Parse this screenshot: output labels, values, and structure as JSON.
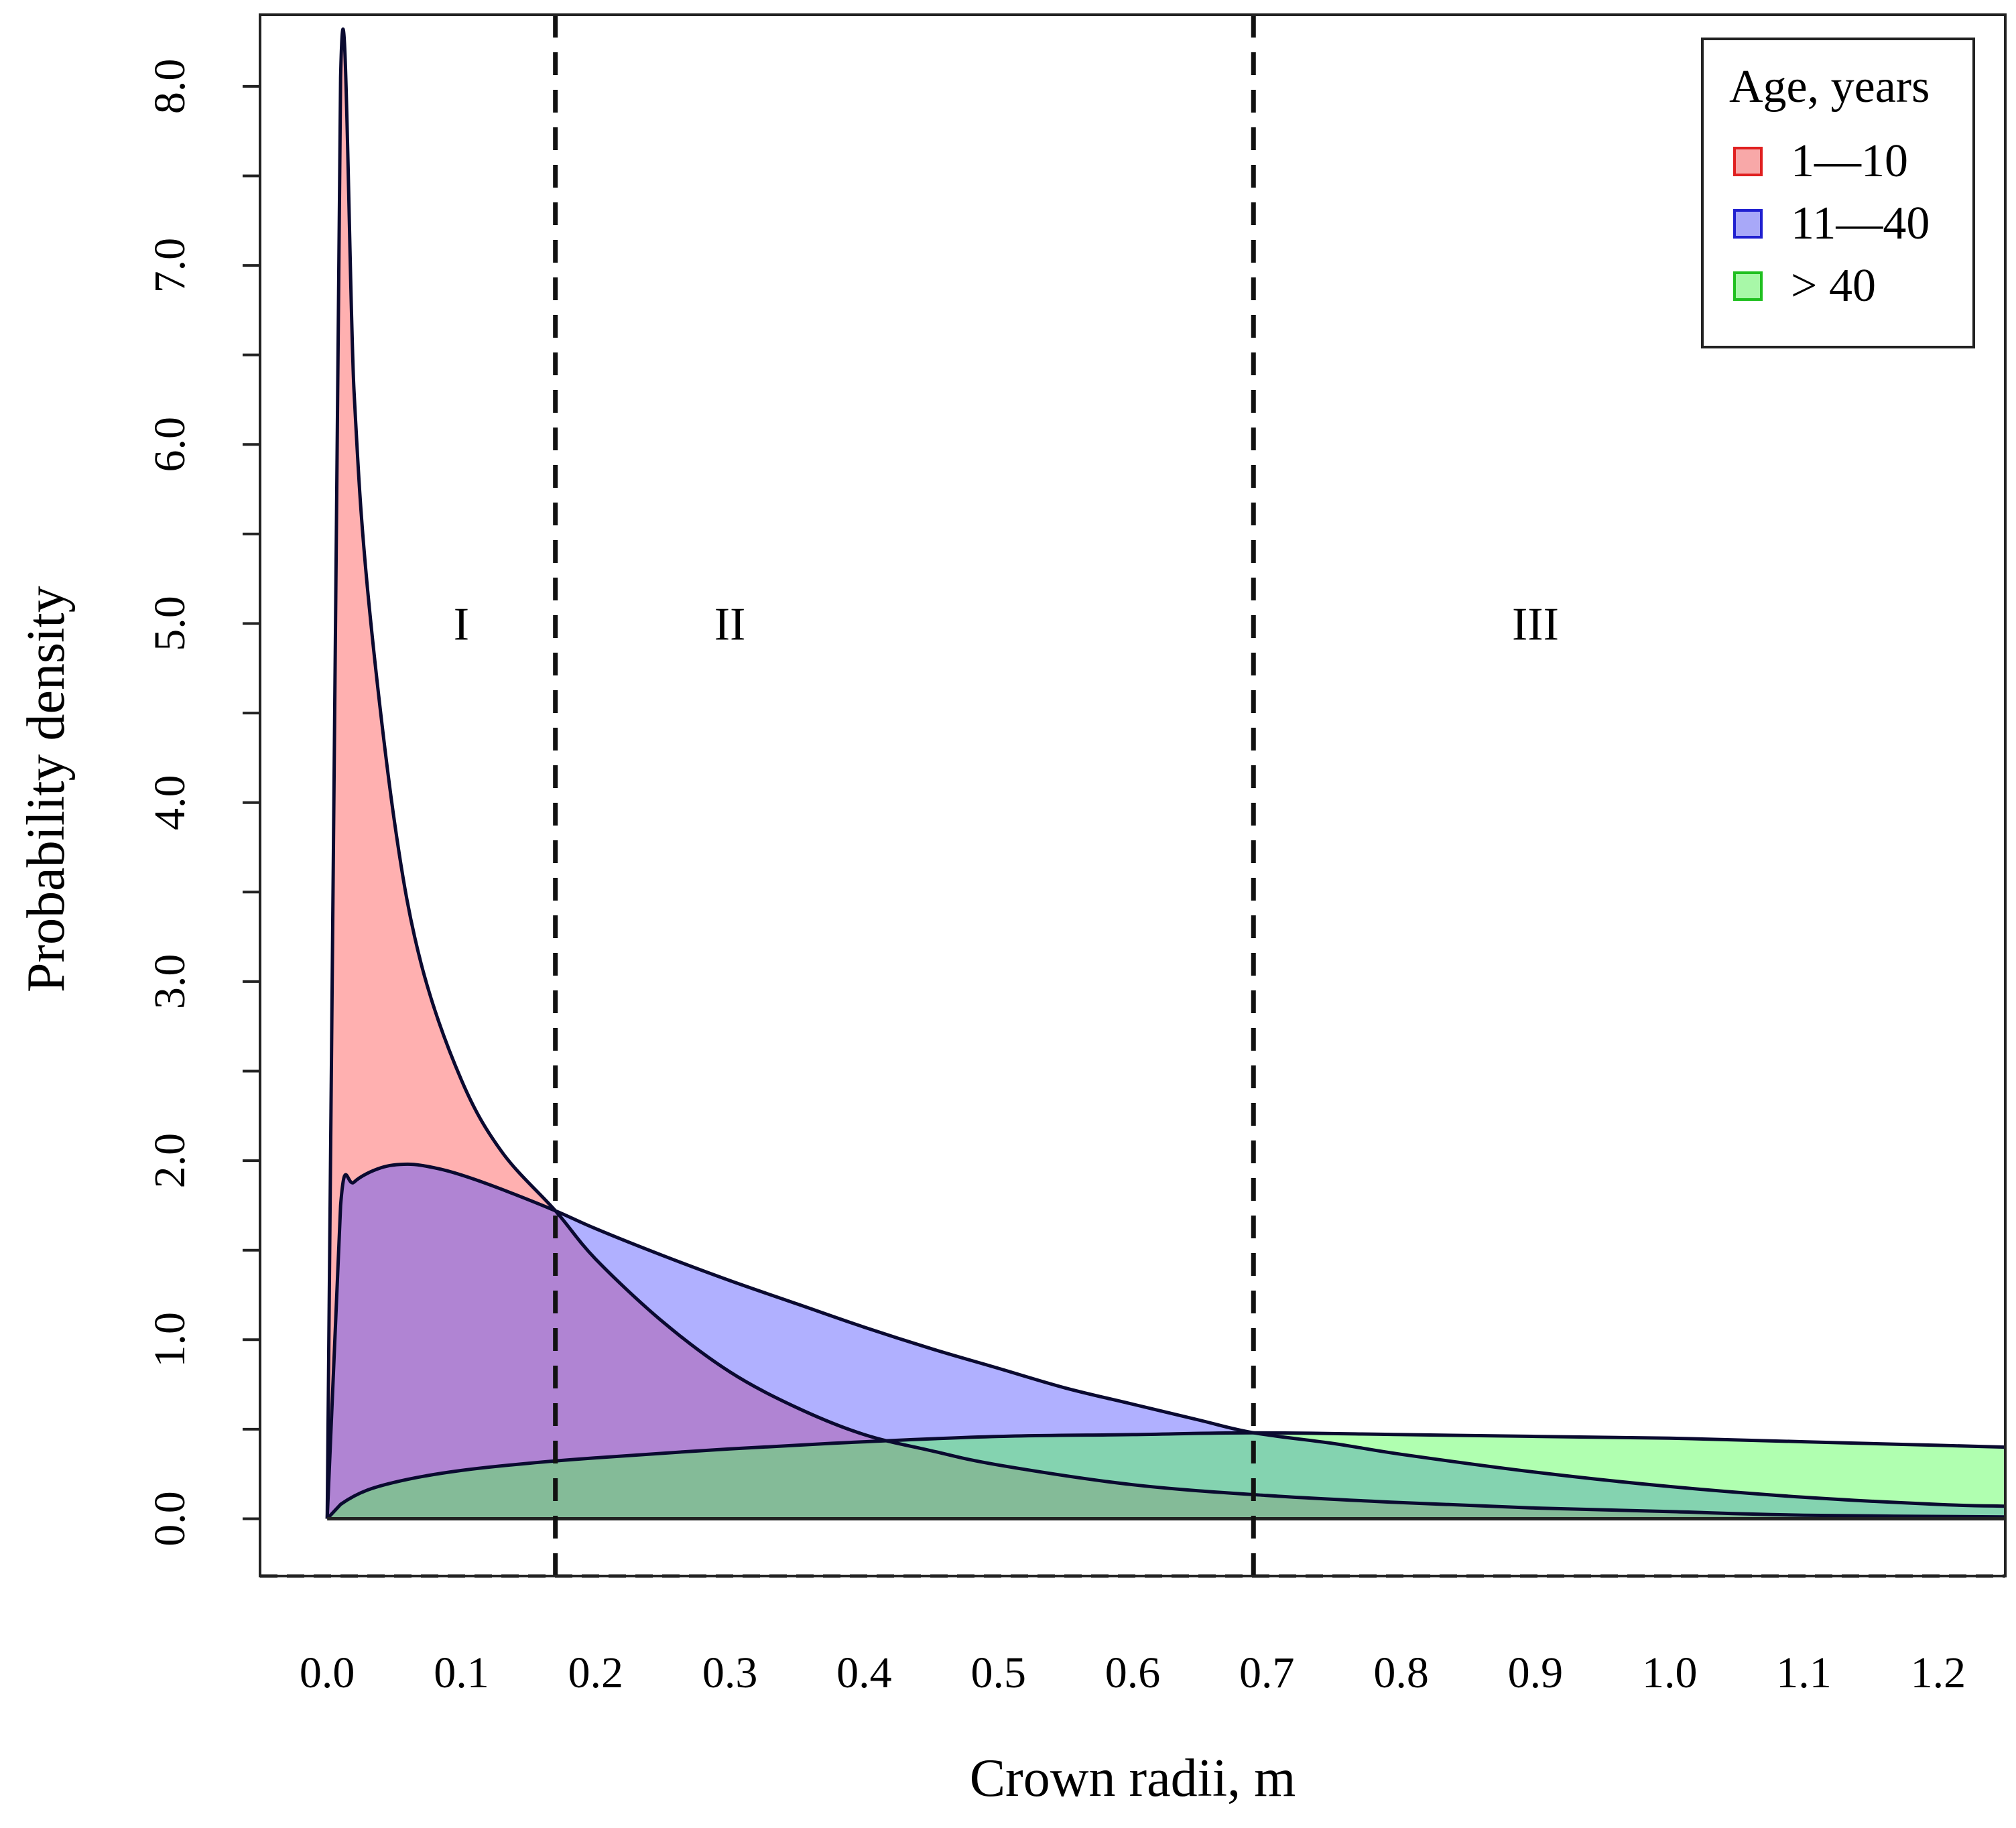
{
  "chart_data": {
    "type": "area",
    "title": "",
    "xlabel": "Crown radii, m",
    "ylabel": "Probability density",
    "xlim": [
      -0.05,
      1.25
    ],
    "ylim": [
      -0.32,
      8.4
    ],
    "x_ticks": [
      0.0,
      0.1,
      0.2,
      0.3,
      0.4,
      0.5,
      0.6,
      0.7,
      0.8,
      0.9,
      1.0,
      1.1,
      1.2
    ],
    "x_tick_labels": [
      "0.0",
      "0.1",
      "0.2",
      "0.3",
      "0.4",
      "0.5",
      "0.6",
      "0.7",
      "0.8",
      "0.9",
      "1.0",
      "1.1",
      "1.2"
    ],
    "y_ticks": [
      0.0,
      1.0,
      2.0,
      3.0,
      4.0,
      5.0,
      6.0,
      7.0,
      8.0
    ],
    "y_tick_labels": [
      "0.0",
      "1.0",
      "2.0",
      "3.0",
      "4.0",
      "5.0",
      "6.0",
      "7.0",
      "8.0"
    ],
    "y_minor_ticks": [
      0.5,
      1.5,
      2.5,
      3.5,
      4.5,
      5.5,
      6.5,
      7.5
    ],
    "grid": false,
    "legend": {
      "title": "Age, years",
      "position": "top-right",
      "entries": [
        {
          "label": "1—10",
          "fill": "#f8a8a8",
          "stroke": "#e02020"
        },
        {
          "label": "11—40",
          "fill": "#a8a8f8",
          "stroke": "#2020d0"
        },
        {
          "label": "> 40",
          "fill": "#a8f8a8",
          "stroke": "#20c020"
        }
      ]
    },
    "thresholds": [
      0.17,
      0.69
    ],
    "regions": [
      {
        "label": "I",
        "x": 0.1,
        "y": 5.0
      },
      {
        "label": "II",
        "x": 0.3,
        "y": 5.0
      },
      {
        "label": "III",
        "x": 0.9,
        "y": 5.0
      }
    ],
    "series": [
      {
        "name": "1—10",
        "fill": "#ff5050",
        "fill_opacity": 0.45,
        "x": [
          0.0,
          0.01,
          0.02,
          0.03,
          0.05,
          0.07,
          0.1,
          0.13,
          0.17,
          0.2,
          0.25,
          0.3,
          0.35,
          0.4,
          0.45,
          0.5,
          0.6,
          0.7,
          0.8,
          0.9,
          1.0,
          1.1,
          1.25
        ],
        "y": [
          0.0,
          8.05,
          6.3,
          5.2,
          3.9,
          3.1,
          2.45,
          2.05,
          1.72,
          1.45,
          1.1,
          0.82,
          0.62,
          0.47,
          0.38,
          0.3,
          0.19,
          0.13,
          0.09,
          0.06,
          0.04,
          0.02,
          0.01
        ]
      },
      {
        "name": "11—40",
        "fill": "#5050ff",
        "fill_opacity": 0.45,
        "x": [
          0.0,
          0.01,
          0.02,
          0.04,
          0.06,
          0.08,
          0.1,
          0.13,
          0.17,
          0.2,
          0.25,
          0.3,
          0.35,
          0.4,
          0.45,
          0.5,
          0.55,
          0.6,
          0.65,
          0.69,
          0.75,
          0.8,
          0.9,
          1.0,
          1.1,
          1.2,
          1.25
        ],
        "y": [
          0.0,
          1.75,
          1.88,
          1.96,
          1.98,
          1.96,
          1.92,
          1.84,
          1.72,
          1.62,
          1.47,
          1.33,
          1.2,
          1.07,
          0.95,
          0.84,
          0.73,
          0.64,
          0.55,
          0.48,
          0.42,
          0.36,
          0.26,
          0.18,
          0.12,
          0.08,
          0.07
        ]
      },
      {
        "name": "> 40",
        "fill": "#50ff50",
        "fill_opacity": 0.45,
        "x": [
          0.0,
          0.01,
          0.03,
          0.06,
          0.1,
          0.15,
          0.2,
          0.3,
          0.4,
          0.5,
          0.6,
          0.69,
          0.8,
          0.9,
          1.0,
          1.1,
          1.2,
          1.25
        ],
        "y": [
          0.0,
          0.08,
          0.16,
          0.22,
          0.27,
          0.31,
          0.34,
          0.39,
          0.43,
          0.46,
          0.47,
          0.48,
          0.47,
          0.46,
          0.45,
          0.43,
          0.41,
          0.4
        ]
      }
    ]
  }
}
